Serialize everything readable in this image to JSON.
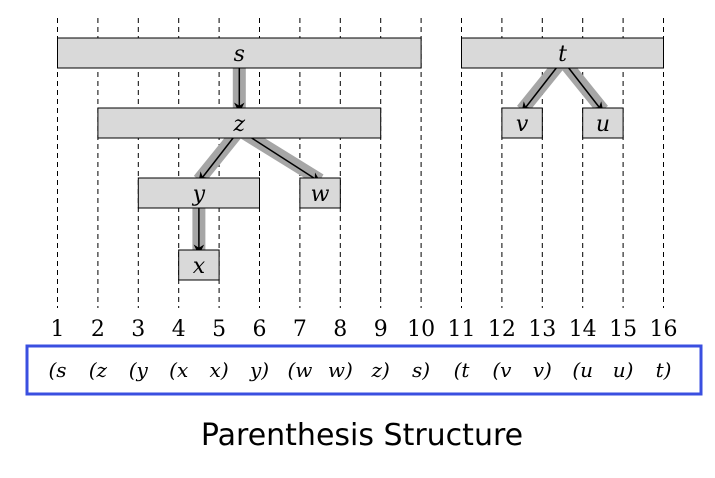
{
  "tick_numbers": [
    "1",
    "2",
    "3",
    "4",
    "5",
    "6",
    "7",
    "8",
    "9",
    "10",
    "11",
    "12",
    "13",
    "14",
    "15",
    "16"
  ],
  "intervals": [
    {
      "id": "s",
      "label": "s",
      "start": 1,
      "end": 10
    },
    {
      "id": "z",
      "label": "z",
      "start": 2,
      "end": 9
    },
    {
      "id": "y",
      "label": "y",
      "start": 3,
      "end": 6
    },
    {
      "id": "x",
      "label": "x",
      "start": 4,
      "end": 5
    },
    {
      "id": "w",
      "label": "w",
      "start": 7,
      "end": 8
    },
    {
      "id": "t",
      "label": "t",
      "start": 11,
      "end": 16
    },
    {
      "id": "v",
      "label": "v",
      "start": 12,
      "end": 13
    },
    {
      "id": "u",
      "label": "u",
      "start": 14,
      "end": 15
    }
  ],
  "edges": [
    {
      "from": "s",
      "to": "z"
    },
    {
      "from": "z",
      "to": "y"
    },
    {
      "from": "z",
      "to": "w"
    },
    {
      "from": "y",
      "to": "x"
    },
    {
      "from": "t",
      "to": "v"
    },
    {
      "from": "t",
      "to": "u"
    }
  ],
  "parenthesis_tokens": [
    "(s",
    "(z",
    "(y",
    "(x",
    "x)",
    "y)",
    "(w",
    "w)",
    "z)",
    "s)",
    "(t",
    "(v",
    "v)",
    "(u",
    "u)",
    "t)"
  ],
  "caption": "Parenthesis Structure",
  "colors": {
    "box_fill": "#d9d9d9",
    "box_stroke": "#000000",
    "edge_shadow": "#a6a6a6",
    "edge_arrow": "#000000",
    "sequence_border": "#3a4fe0",
    "dashed_line": "#000000"
  }
}
